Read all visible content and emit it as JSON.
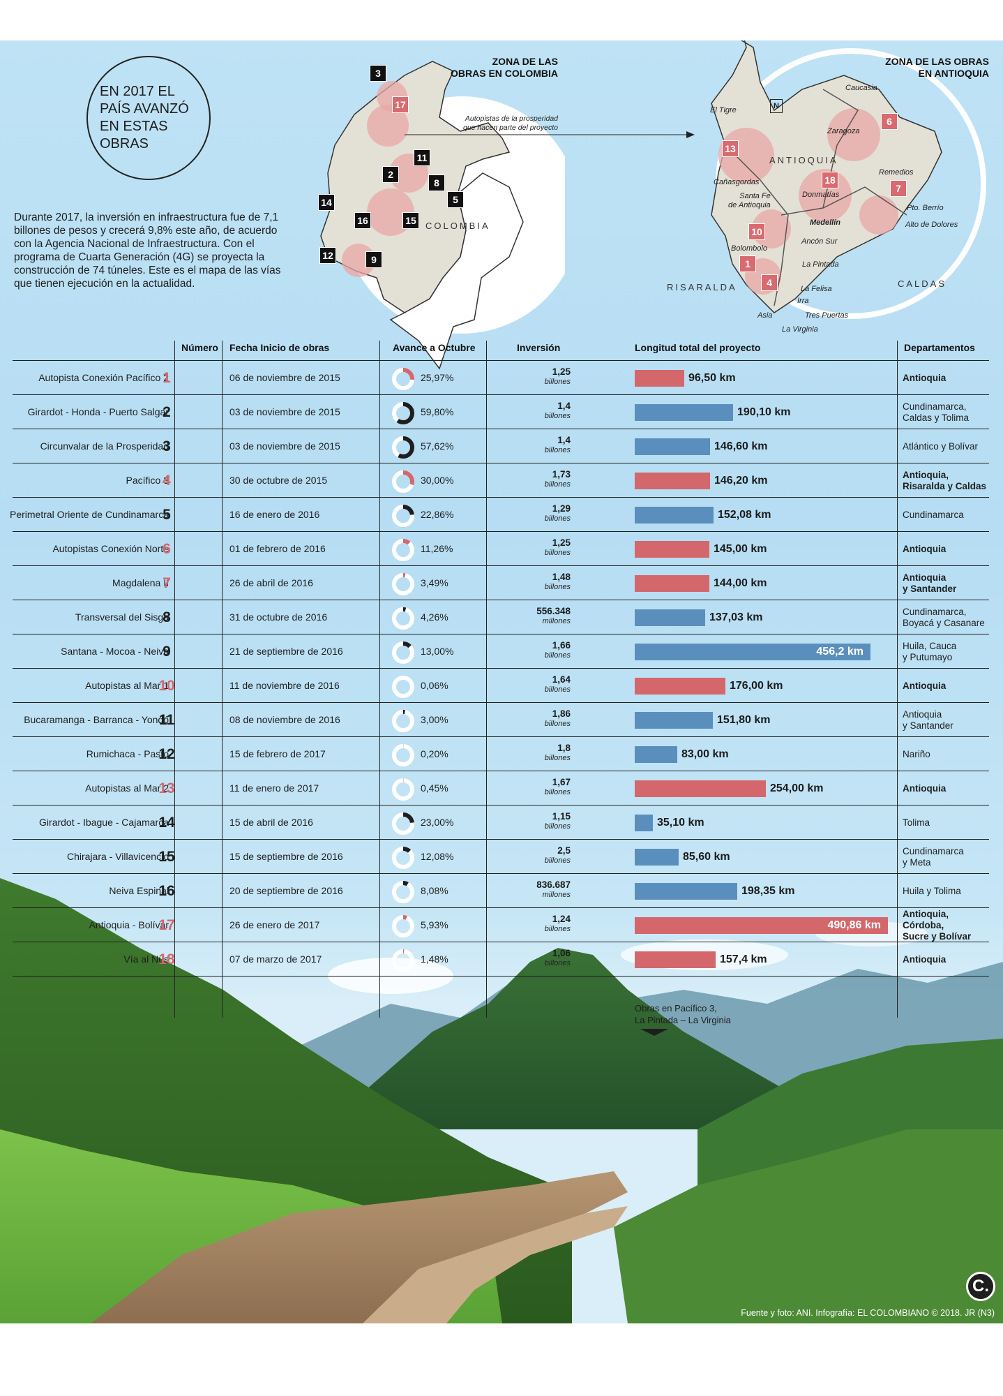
{
  "title_circle": "EN 2017 EL PAÍS AVANZÓ EN ESTAS OBRAS",
  "intro": "Durante 2017, la inversión en infraestructura fue de 7,1 billones de pesos y crecerá 9,8% este año, de acuerdo con la Agencia Nacional de Infraestructura. Con el programa de Cuarta Generación (4G) se proyecta la construcción de 74 túneles. Este es el mapa de las vías que tienen ejecución en la actualidad.",
  "map_colombia": {
    "zone_title": "ZONA DE LAS\nOBRAS EN COLOMBIA",
    "country_label": "COLOMBIA",
    "annotation": "Autopistas de la prosperidad\nque hacen parte del proyecto"
  },
  "map_antioquia": {
    "zone_title": "ZONA DE LAS OBRAS\nEN ANTIOQUIA",
    "region_label": "ANTIOQUIA",
    "north_symbol": "N",
    "neighbor_left": "RISARALDA",
    "neighbor_right": "CALDAS",
    "towns": {
      "caucasia": "Caucasia",
      "el_tigre": "El Tigre",
      "zaragoza": "Zaragoza",
      "remedios": "Remedios",
      "canasgordas": "Cañasgordas",
      "santa_fe": "Santa Fe\nde Antioquia",
      "donmatias": "Donmatías",
      "medellin": "Medellín",
      "pto_berrio": "Pto. Berrío",
      "alto_dolores": "Alto de Dolores",
      "bolombolo": "Bolombolo",
      "ancon_sur": "Ancón Sur",
      "la_pintada": "La Pintada",
      "la_felisa": "La Felisa",
      "irra": "Irra",
      "asia": "Asia",
      "tres_puertas": "Tres Puertas",
      "la_virginia": "La Virginia"
    }
  },
  "table": {
    "headers": {
      "numero": "Número",
      "fecha": "Fecha Inicio de obras",
      "avance": "Avance a Octubre",
      "inversion": "Inversión",
      "longitud": "Longitud total del proyecto",
      "departamentos": "Departamentos"
    },
    "colors": {
      "antioquia": "#d4676c",
      "other": "#5a8fbd"
    }
  },
  "chart_data": {
    "type": "table",
    "rows": [
      {
        "name": "Autopista Conexión Pacífico 2",
        "num": "1",
        "fecha": "06 de noviembre de 2015",
        "avance_label": "25,97%",
        "avance": 25.97,
        "inv": "1,25",
        "inv_unit": "billones",
        "len_label": "96,50 km",
        "len": 96.5,
        "dept": "Antioquia",
        "antioquia": true
      },
      {
        "name": "Girardot - Honda - Puerto Salgar",
        "num": "2",
        "fecha": "03 de noviembre de 2015",
        "avance_label": "59,80%",
        "avance": 59.8,
        "inv": "1,4",
        "inv_unit": "billones",
        "len_label": "190,10 km",
        "len": 190.1,
        "dept": "Cundinamarca,\nCaldas y Tolima",
        "antioquia": false
      },
      {
        "name": "Circunvalar de la Prosperidad",
        "num": "3",
        "fecha": "03 de noviembre de 2015",
        "avance_label": "57,62%",
        "avance": 57.62,
        "inv": "1,4",
        "inv_unit": "billones",
        "len_label": "146,60 km",
        "len": 146.6,
        "dept": "Atlántico y Bolívar",
        "antioquia": false
      },
      {
        "name": "Pacífico 3",
        "num": "4",
        "fecha": "30 de octubre de 2015",
        "avance_label": "30,00%",
        "avance": 30.0,
        "inv": "1,73",
        "inv_unit": "billones",
        "len_label": "146,20 km",
        "len": 146.2,
        "dept": "Antioquia,\nRisaralda y Caldas",
        "antioquia": true
      },
      {
        "name": "Perimetral Oriente de Cundinamarca",
        "num": "5",
        "fecha": "16 de enero de 2016",
        "avance_label": "22,86%",
        "avance": 22.86,
        "inv": "1,29",
        "inv_unit": "billones",
        "len_label": "152,08 km",
        "len": 152.08,
        "dept": "Cundinamarca",
        "antioquia": false
      },
      {
        "name": "Autopistas Conexión Norte",
        "num": "6",
        "fecha": "01 de febrero de 2016",
        "avance_label": "11,26%",
        "avance": 11.26,
        "inv": "1,25",
        "inv_unit": "billones",
        "len_label": "145,00 km",
        "len": 145.0,
        "dept": "Antioquia",
        "antioquia": true
      },
      {
        "name": "Magdalena II",
        "num": "7",
        "fecha": "26 de abril de 2016",
        "avance_label": "3,49%",
        "avance": 3.49,
        "inv": "1,48",
        "inv_unit": "billones",
        "len_label": "144,00 km",
        "len": 144.0,
        "dept": "Antioquia\ny Santander",
        "antioquia": true
      },
      {
        "name": "Transversal del Sisga",
        "num": "8",
        "fecha": "31 de octubre de 2016",
        "avance_label": "4,26%",
        "avance": 4.26,
        "inv": "556.348",
        "inv_unit": "millones",
        "len_label": "137,03 km",
        "len": 137.03,
        "dept": "Cundinamarca,\nBoyacá y Casanare",
        "antioquia": false
      },
      {
        "name": "Santana - Mocoa - Neiva",
        "num": "9",
        "fecha": "21 de septiembre de 2016",
        "avance_label": "13,00%",
        "avance": 13.0,
        "inv": "1,66",
        "inv_unit": "billones",
        "len_label": "456,2 km",
        "len": 456.2,
        "dept": "Huila, Cauca\ny Putumayo",
        "antioquia": false
      },
      {
        "name": "Autopistas al Mar 1",
        "num": "10",
        "fecha": "11 de noviembre de 2016",
        "avance_label": "0,06%",
        "avance": 0.06,
        "inv": "1,64",
        "inv_unit": "billones",
        "len_label": "176,00 km",
        "len": 176.0,
        "dept": "Antioquia",
        "antioquia": true
      },
      {
        "name": "Bucaramanga - Barranca - Yondó",
        "num": "11",
        "fecha": "08 de noviembre de 2016",
        "avance_label": "3,00%",
        "avance": 3.0,
        "inv": "1,86",
        "inv_unit": "billones",
        "len_label": "151,80 km",
        "len": 151.8,
        "dept": "Antioquia\ny Santander",
        "antioquia": false
      },
      {
        "name": "Rumichaca - Pasto",
        "num": "12",
        "fecha": "15 de febrero de 2017",
        "avance_label": "0,20%",
        "avance": 0.2,
        "inv": "1,8",
        "inv_unit": "billones",
        "len_label": "83,00 km",
        "len": 83.0,
        "dept": "Nariño",
        "antioquia": false
      },
      {
        "name": "Autopistas al Mar 2",
        "num": "13",
        "fecha": "11 de enero de 2017",
        "avance_label": "0,45%",
        "avance": 0.45,
        "inv": "1,67",
        "inv_unit": "billones",
        "len_label": "254,00 km",
        "len": 254.0,
        "dept": "Antioquia",
        "antioquia": true
      },
      {
        "name": "Girardot - Ibague - Cajamarca",
        "num": "14",
        "fecha": "15 de abril de 2016",
        "avance_label": "23,00%",
        "avance": 23.0,
        "inv": "1,15",
        "inv_unit": "billones",
        "len_label": "35,10 km",
        "len": 35.1,
        "dept": "Tolima",
        "antioquia": false
      },
      {
        "name": "Chirajara - Villavicencio",
        "num": "15",
        "fecha": "15 de septiembre de 2016",
        "avance_label": "12,08%",
        "avance": 12.08,
        "inv": "2,5",
        "inv_unit": "billones",
        "len_label": "85,60 km",
        "len": 85.6,
        "dept": "Cundinamarca\ny Meta",
        "antioquia": false
      },
      {
        "name": "Neiva Espinal",
        "num": "16",
        "fecha": "20 de septiembre de 2016",
        "avance_label": "8,08%",
        "avance": 8.08,
        "inv": "836.687",
        "inv_unit": "millones",
        "len_label": "198,35 km",
        "len": 198.35,
        "dept": "Huila y Tolima",
        "antioquia": false
      },
      {
        "name": "Antioquia - Bolívar",
        "num": "17",
        "fecha": "26 de enero de 2017",
        "avance_label": "5,93%",
        "avance": 5.93,
        "inv": "1,24",
        "inv_unit": "billones",
        "len_label": "490,86 km",
        "len": 490.86,
        "dept": "Antioquia, Córdoba,\nSucre y Bolívar",
        "antioquia": true
      },
      {
        "name": "Vía al Nus",
        "num": "18",
        "fecha": "07 de marzo de 2017",
        "avance_label": "1,48%",
        "avance": 1.48,
        "inv": "1,06",
        "inv_unit": "billones",
        "len_label": "157,4 km",
        "len": 157.4,
        "dept": "Antioquia",
        "antioquia": true
      }
    ]
  },
  "photo_caption": "Obras en Pacífico 3,\nLa Pintada – La Virginia",
  "footer": "Fuente y foto: ANI. Infografía: EL COLOMBIANO © 2018. JR (N3)",
  "logo": "C."
}
